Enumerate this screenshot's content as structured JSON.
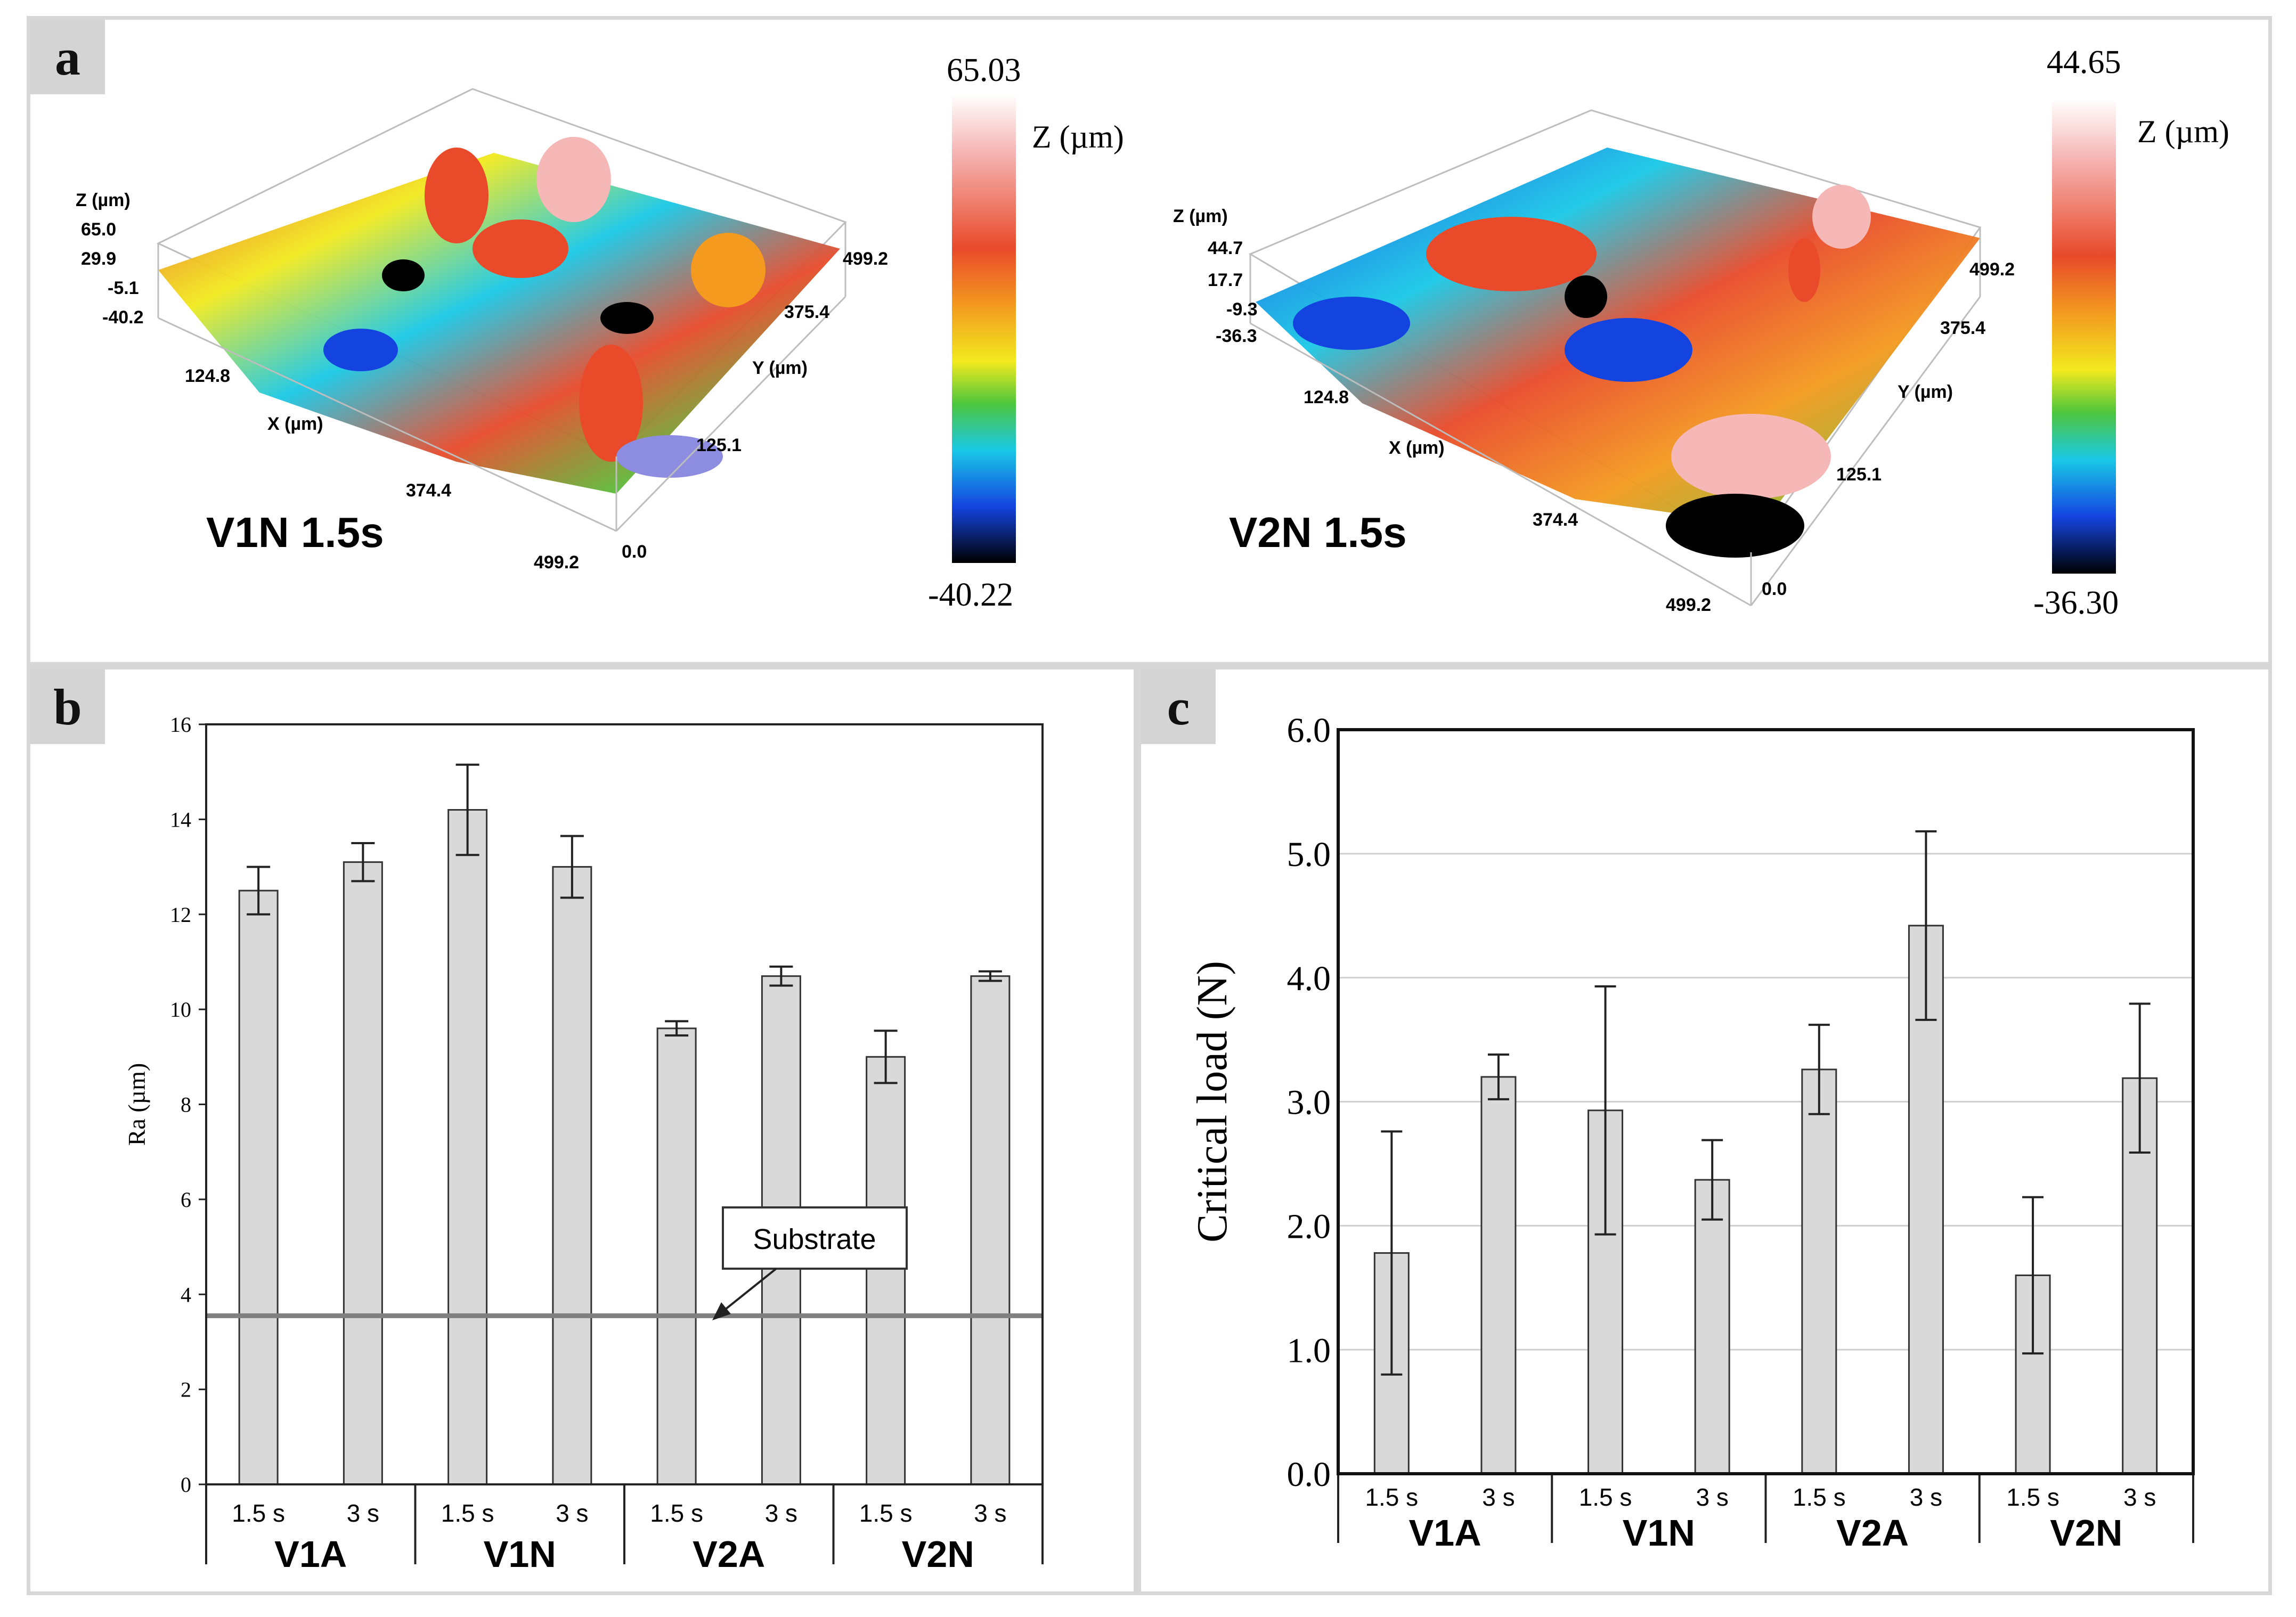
{
  "panel_a": {
    "letter": "a",
    "left_plot": {
      "sample_label": "V1N 1.5s",
      "z_axis_title": "Z (µm)",
      "z_ticks": [
        "65.0",
        "29.9",
        "-5.1",
        "-40.2"
      ],
      "x_axis_title": "X (µm)",
      "x_ticks": [
        "124.8",
        "374.4",
        "499.2"
      ],
      "y_axis_title": "Y (µm)",
      "y_ticks": [
        "499.2",
        "375.4",
        "125.1",
        "0.0"
      ],
      "colorbar": {
        "max": "65.03",
        "min": "-40.22",
        "title": "Z (µm)"
      }
    },
    "right_plot": {
      "sample_label": "V2N 1.5s",
      "z_axis_title": "Z (µm)",
      "z_ticks": [
        "44.7",
        "17.7",
        "-9.3",
        "-36.3"
      ],
      "x_axis_title": "X (µm)",
      "x_ticks": [
        "124.8",
        "374.4",
        "499.2"
      ],
      "y_axis_title": "Y (µm)",
      "y_ticks": [
        "499.2",
        "375.4",
        "125.1",
        "0.0"
      ],
      "colorbar": {
        "max": "44.65",
        "min": "-36.30",
        "title": "Z (µm)"
      }
    },
    "colors": {
      "c1": "#ffffff",
      "c2": "#f6b7b7",
      "c3": "#e84a2a",
      "c4": "#f39a1f",
      "c5": "#f2ea1e",
      "c6": "#4ec63c",
      "c7": "#19c8e6",
      "c8": "#1444e0",
      "c9": "#000000"
    }
  },
  "panel_b": {
    "letter": "b",
    "annotation": "Substrate"
  },
  "panel_c": {
    "letter": "c"
  },
  "chart_data": [
    {
      "type": "bar",
      "panel": "b",
      "ylabel": "Ra (µm)",
      "ylim": [
        0,
        16
      ],
      "yticks": [
        0,
        2,
        4,
        6,
        8,
        10,
        12,
        14,
        16
      ],
      "groups": [
        "V1A",
        "V1N",
        "V2A",
        "V2N"
      ],
      "sub_categories": [
        "1.5 s",
        "3 s"
      ],
      "values": [
        12.5,
        13.1,
        14.2,
        13.0,
        9.6,
        10.7,
        9.0,
        10.7
      ],
      "errors": [
        0.5,
        0.4,
        0.95,
        0.65,
        0.15,
        0.2,
        0.55,
        0.1
      ],
      "reference_line": {
        "label": "Substrate",
        "value": 3.55
      },
      "grid": false,
      "bar_color": "#d9d9d9"
    },
    {
      "type": "bar",
      "panel": "c",
      "ylabel": "Critical load (N)",
      "ylim": [
        0,
        6
      ],
      "yticks": [
        "0.0",
        "1.0",
        "2.0",
        "3.0",
        "4.0",
        "5.0",
        "6.0"
      ],
      "groups": [
        "V1A",
        "V1N",
        "V2A",
        "V2N"
      ],
      "sub_categories": [
        "1.5 s",
        "3 s"
      ],
      "values": [
        1.78,
        3.2,
        2.93,
        2.37,
        3.26,
        4.42,
        1.6,
        3.19
      ],
      "errors": [
        0.98,
        0.18,
        1.0,
        0.32,
        0.36,
        0.76,
        0.63,
        0.6
      ],
      "grid": true,
      "bar_color": "#d9d9d9"
    }
  ]
}
